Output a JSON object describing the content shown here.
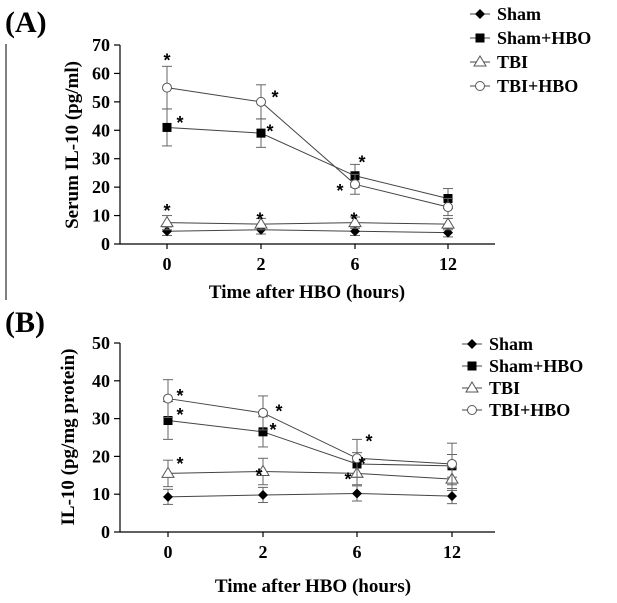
{
  "chart_data": [
    {
      "type": "line",
      "panel_label": "(A)",
      "xlabel": "Time after HBO (hours)",
      "ylabel": "Serum IL-10 (pg/ml)",
      "categories": [
        "0",
        "2",
        "6",
        "12"
      ],
      "ylim": [
        0,
        70
      ],
      "yticks": [
        "0",
        "10",
        "20",
        "30",
        "40",
        "50",
        "60",
        "70"
      ],
      "legend_position": "top-right",
      "grid": false,
      "series": [
        {
          "name": "Sham",
          "marker": "diamond",
          "values": [
            4.5,
            5,
            4.5,
            4
          ],
          "errors": [
            1.5,
            1.5,
            1.5,
            1.5
          ]
        },
        {
          "name": "Sham+HBO",
          "marker": "square",
          "values": [
            41,
            39,
            24,
            16
          ],
          "errors": [
            6.5,
            5,
            4,
            3.5
          ]
        },
        {
          "name": "TBI",
          "marker": "triangle",
          "values": [
            7.5,
            7,
            7.5,
            7
          ],
          "errors": [
            2.5,
            2,
            2,
            2
          ]
        },
        {
          "name": "TBI+HBO",
          "marker": "circle",
          "values": [
            55,
            50,
            21,
            13
          ],
          "errors": [
            7.5,
            6,
            3.5,
            3
          ]
        }
      ],
      "annotations": [
        {
          "text": "*",
          "category": "0",
          "y": 66
        },
        {
          "text": "*",
          "category": "0",
          "y": 44
        },
        {
          "text": "*",
          "category": "0",
          "y": 13
        },
        {
          "text": "*",
          "category": "2",
          "y": 53
        },
        {
          "text": "*",
          "category": "2",
          "y": 41
        },
        {
          "text": "*",
          "category": "2",
          "y": 10
        },
        {
          "text": "*",
          "category": "6",
          "y": 30
        },
        {
          "text": "*",
          "category": "6",
          "y": 20
        },
        {
          "text": "*",
          "category": "6",
          "y": 10
        }
      ]
    },
    {
      "type": "line",
      "panel_label": "(B)",
      "xlabel": "Time after HBO (hours)",
      "ylabel": "IL-10 (pg/mg protein)",
      "categories": [
        "0",
        "2",
        "6",
        "12"
      ],
      "ylim": [
        0,
        50
      ],
      "yticks": [
        "0",
        "10",
        "20",
        "30",
        "40",
        "50"
      ],
      "legend_position": "top-right",
      "grid": false,
      "series": [
        {
          "name": "Sham",
          "marker": "diamond",
          "values": [
            9.3,
            9.8,
            10.2,
            9.5
          ],
          "errors": [
            2,
            2,
            2,
            2
          ]
        },
        {
          "name": "Sham+HBO",
          "marker": "square",
          "values": [
            29.5,
            26.5,
            18,
            17.5
          ],
          "errors": [
            5,
            4,
            3,
            3
          ]
        },
        {
          "name": "TBI",
          "marker": "triangle",
          "values": [
            15.5,
            16,
            15.5,
            14
          ],
          "errors": [
            3.5,
            3.5,
            3,
            3
          ]
        },
        {
          "name": "TBI+HBO",
          "marker": "circle",
          "values": [
            35.3,
            31.5,
            19.5,
            18
          ],
          "errors": [
            5,
            4.5,
            5,
            5.5
          ]
        }
      ],
      "annotations": [
        {
          "text": "*",
          "category": "0",
          "y": 37
        },
        {
          "text": "*",
          "category": "0",
          "y": 32
        },
        {
          "text": "*",
          "category": "0",
          "y": 19
        },
        {
          "text": "*",
          "category": "2",
          "y": 33
        },
        {
          "text": "*",
          "category": "2",
          "y": 28
        },
        {
          "text": "*",
          "category": "2",
          "y": 16
        },
        {
          "text": "*",
          "category": "6",
          "y": 25
        },
        {
          "text": "*",
          "category": "6",
          "y": 19
        },
        {
          "text": "*",
          "category": "6",
          "y": 15
        }
      ]
    }
  ]
}
